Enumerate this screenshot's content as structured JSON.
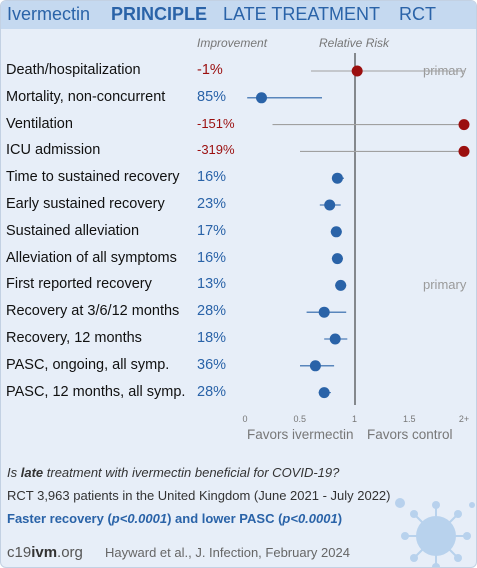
{
  "header": {
    "drug": "Ivermectin",
    "trial": "PRINCIPLE",
    "stage": "LATE TREATMENT",
    "type": "RCT"
  },
  "columns": {
    "improvement": "Improvement",
    "relative_risk": "Relative Risk"
  },
  "chart_data": {
    "type": "forest",
    "x_scale": "relative risk, compressed above 1",
    "xlim": [
      0,
      2
    ],
    "ticks": [
      "0",
      "0.5",
      "1",
      "1.5",
      "2+"
    ],
    "favors_left": "Favors ivermectin",
    "favors_right": "Favors control",
    "rows": [
      {
        "label": "Death/hospitalization",
        "improvement": "-1%",
        "rr": 1.01,
        "lo": 0.6,
        "hi": 2.0,
        "color": "#9b0f0f",
        "note": "primary"
      },
      {
        "label": "Mortality, non-concurrent",
        "improvement": "85%",
        "rr": 0.15,
        "lo": 0.02,
        "hi": 0.7,
        "color": "#2a63a8",
        "note": ""
      },
      {
        "label": "Ventilation",
        "improvement": "-151%",
        "rr": 2.51,
        "lo": 0.25,
        "hi": 2.51,
        "color": "#9b0f0f",
        "note": ""
      },
      {
        "label": "ICU admission",
        "improvement": "-319%",
        "rr": 4.19,
        "lo": 0.5,
        "hi": 4.19,
        "color": "#9b0f0f",
        "note": ""
      },
      {
        "label": "Time to sustained recovery",
        "improvement": "16%",
        "rr": 0.84,
        "lo": 0.79,
        "hi": 0.9,
        "color": "#2a63a8",
        "note": ""
      },
      {
        "label": "Early sustained recovery",
        "improvement": "23%",
        "rr": 0.77,
        "lo": 0.68,
        "hi": 0.87,
        "color": "#2a63a8",
        "note": ""
      },
      {
        "label": "Sustained alleviation",
        "improvement": "17%",
        "rr": 0.83,
        "lo": 0.78,
        "hi": 0.88,
        "color": "#2a63a8",
        "note": ""
      },
      {
        "label": "Alleviation of all symptoms",
        "improvement": "16%",
        "rr": 0.84,
        "lo": 0.79,
        "hi": 0.89,
        "color": "#2a63a8",
        "note": ""
      },
      {
        "label": "First reported recovery",
        "improvement": "13%",
        "rr": 0.87,
        "lo": 0.82,
        "hi": 0.92,
        "color": "#2a63a8",
        "note": "primary"
      },
      {
        "label": "Recovery at 3/6/12 months",
        "improvement": "28%",
        "rr": 0.72,
        "lo": 0.56,
        "hi": 0.92,
        "color": "#2a63a8",
        "note": ""
      },
      {
        "label": "Recovery, 12 months",
        "improvement": "18%",
        "rr": 0.82,
        "lo": 0.72,
        "hi": 0.93,
        "color": "#2a63a8",
        "note": ""
      },
      {
        "label": "PASC, ongoing, all symp.",
        "improvement": "36%",
        "rr": 0.64,
        "lo": 0.5,
        "hi": 0.81,
        "color": "#2a63a8",
        "note": ""
      },
      {
        "label": "PASC, 12 months, all symp.",
        "improvement": "28%",
        "rr": 0.72,
        "lo": 0.67,
        "hi": 0.78,
        "color": "#2a63a8",
        "note": ""
      }
    ]
  },
  "footer": {
    "question_pre": "Is ",
    "question_bold": "late",
    "question_post": " treatment with ivermectin beneficial for COVID-19?",
    "rct_line": "RCT 3,963 patients in the United Kingdom (June 2021 - July 2022)",
    "result_1": "Faster recovery (",
    "result_p1": "p<0.0001",
    "result_2": ") and lower PASC (",
    "result_p2": "p<0.0001",
    "result_3": ")",
    "site_pre": "c19",
    "site_bold": "ivm",
    "site_post": ".org",
    "citation": "Hayward et al., J. Infection, February 2024"
  },
  "colors": {
    "benefit": "#2a63a8",
    "harm": "#9b0f0f",
    "header_bg": "#c5d9f0",
    "card_bg": "#e7eef8"
  },
  "icons": {
    "virus": "coronavirus-icon"
  }
}
